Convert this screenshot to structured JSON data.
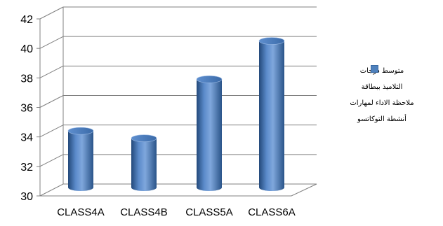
{
  "chart_data": {
    "type": "bar",
    "style": "3d-cylinder",
    "categories": [
      "CLASS4A",
      "CLASS4B",
      "CLASS5A",
      "CLASS6A"
    ],
    "series": [
      {
        "name": "متوسط درجات التلاميذ ببطاقة ملاحظة الاداء لمهارات أنشطة التوكاتسو",
        "values": [
          34.5,
          34.0,
          38.0,
          40.6
        ]
      }
    ],
    "y_ticks": [
      "30",
      "32",
      "34",
      "36",
      "38",
      "40",
      "42"
    ],
    "ylim": [
      30,
      42
    ],
    "title": "",
    "xlabel": "",
    "ylabel": "",
    "grid": true,
    "legend_position": "right",
    "colors": {
      "bar_light": "#7fa7dc",
      "bar_mid": "#4f81bd",
      "bar_dark": "#23497a",
      "grid": "#808080"
    }
  }
}
